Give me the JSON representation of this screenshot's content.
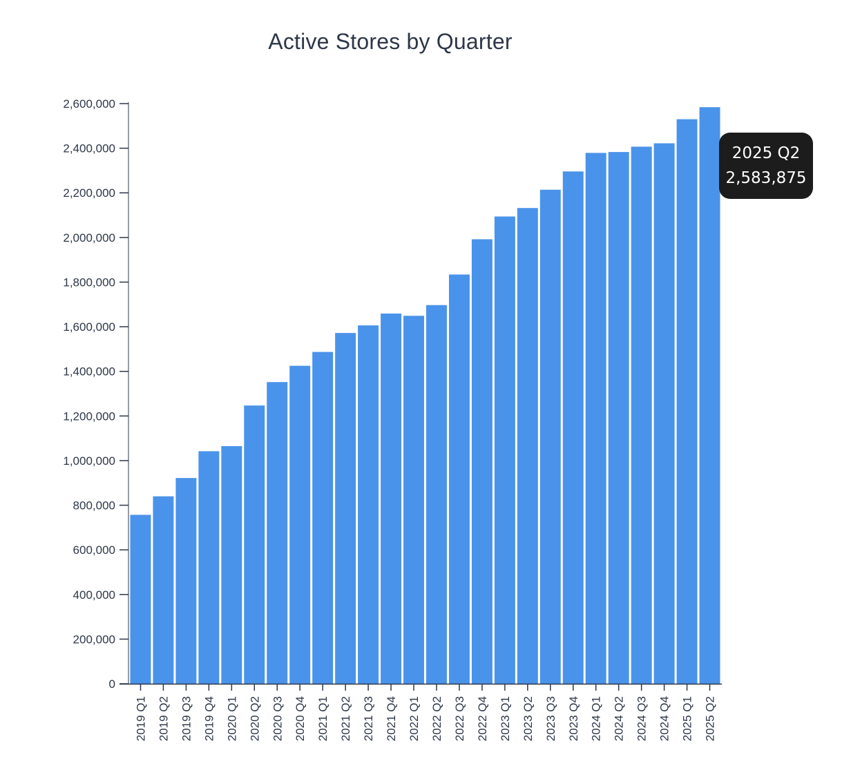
{
  "chart_data": {
    "type": "bar",
    "title": "Active Stores by Quarter",
    "xlabel": "",
    "ylabel": "",
    "ylim": [
      0,
      2600000
    ],
    "yticks": [
      0,
      200000,
      400000,
      600000,
      800000,
      1000000,
      1200000,
      1400000,
      1600000,
      1800000,
      2000000,
      2200000,
      2400000,
      2600000
    ],
    "ytick_labels": [
      "0",
      "200,000",
      "400,000",
      "600,000",
      "800,000",
      "1,000,000",
      "1,200,000",
      "1,400,000",
      "1,600,000",
      "1,800,000",
      "2,000,000",
      "2,200,000",
      "2,400,000",
      "2,600,000"
    ],
    "categories": [
      "2019 Q1",
      "2019 Q2",
      "2019 Q3",
      "2019 Q4",
      "2020 Q1",
      "2020 Q2",
      "2020 Q3",
      "2020 Q4",
      "2021 Q1",
      "2021 Q2",
      "2021 Q3",
      "2021 Q4",
      "2022 Q1",
      "2022 Q2",
      "2022 Q3",
      "2022 Q4",
      "2023 Q1",
      "2023 Q2",
      "2023 Q3",
      "2023 Q4",
      "2024 Q1",
      "2024 Q2",
      "2024 Q3",
      "2024 Q4",
      "2025 Q1",
      "2025 Q2"
    ],
    "values": [
      757000,
      840000,
      922000,
      1042000,
      1065000,
      1247000,
      1352000,
      1425000,
      1487000,
      1572000,
      1606000,
      1659000,
      1649000,
      1697000,
      1834000,
      1992000,
      2094000,
      2132000,
      2214000,
      2296000,
      2379000,
      2383000,
      2407000,
      2422000,
      2530000,
      2583875
    ],
    "grid": false,
    "bar_color": "#4a93ea",
    "tooltip": {
      "category": "2025 Q2",
      "value_label": "2,583,875"
    }
  }
}
